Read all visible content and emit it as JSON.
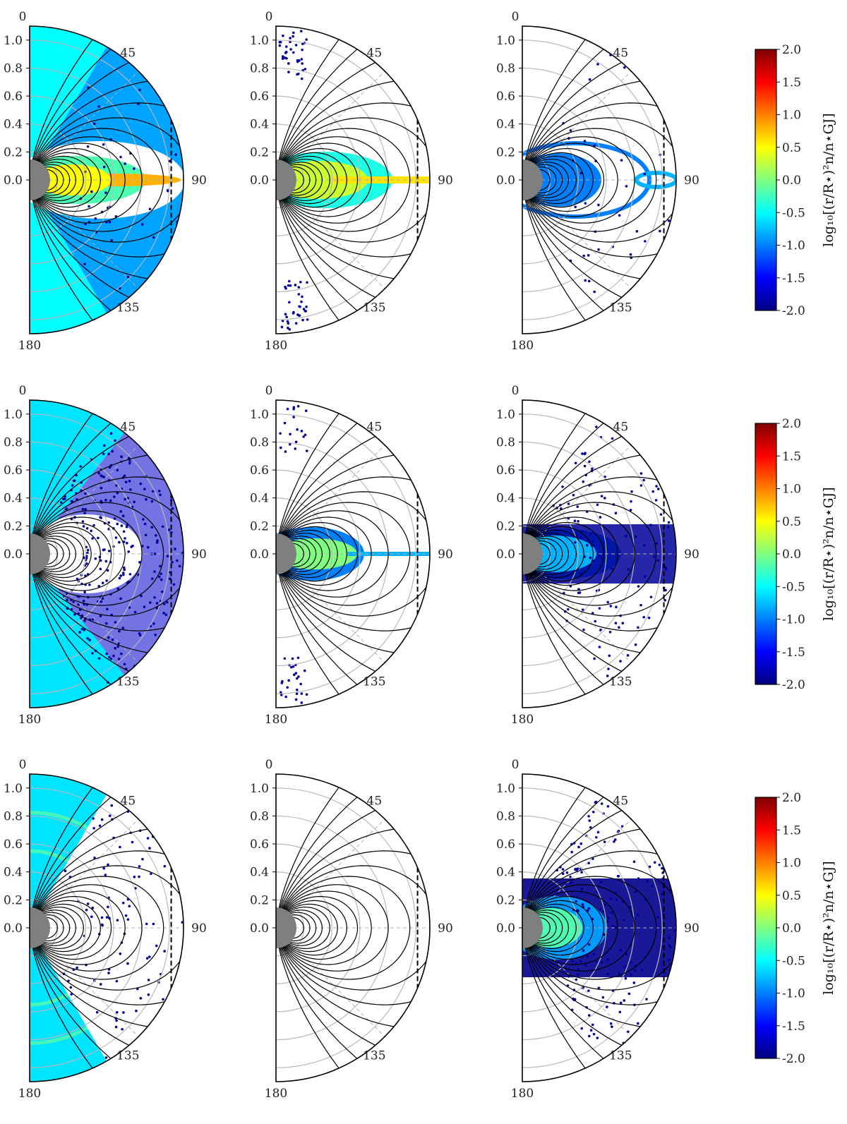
{
  "figure": {
    "panel_rows": 3,
    "panel_cols": 3,
    "angle_ticks": [
      "0",
      "45",
      "90",
      "135",
      "180"
    ],
    "radial_ticks": [
      "1.0",
      "0.8",
      "0.6",
      "0.4",
      "0.2",
      "0.0"
    ]
  },
  "colorbar": {
    "label": "log₁₀[(r/R⋆)²n/n⋆GJ]",
    "ticks": [
      "2.0",
      "1.5",
      "1.0",
      "0.5",
      "0.0",
      "-0.5",
      "-1.0",
      "-1.5",
      "-2.0"
    ],
    "range": [
      -2.0,
      2.0
    ],
    "colormap": "jet"
  },
  "chart_data": {
    "type": "heatmap",
    "projection": "polar half-plane",
    "theta_range_deg": [
      0,
      180
    ],
    "r_range": [
      0,
      1.1
    ],
    "colorbar_range": [
      -2.0,
      2.0
    ],
    "panels": [
      {
        "row": 0,
        "col": 0,
        "pattern": "filled",
        "level": -0.6
      },
      {
        "row": 0,
        "col": 1,
        "pattern": "sheet",
        "level": 0.2
      },
      {
        "row": 0,
        "col": 2,
        "pattern": "ring",
        "level": -1.2
      },
      {
        "row": 1,
        "col": 0,
        "pattern": "wedge-scatter",
        "level": -0.7
      },
      {
        "row": 1,
        "col": 1,
        "pattern": "sheet-small",
        "level": -0.2
      },
      {
        "row": 1,
        "col": 2,
        "pattern": "band",
        "level": -1.8
      },
      {
        "row": 2,
        "col": 0,
        "pattern": "wedge-arcs",
        "level": -0.8
      },
      {
        "row": 2,
        "col": 1,
        "pattern": "empty",
        "level": null
      },
      {
        "row": 2,
        "col": 2,
        "pattern": "band-core",
        "level": -1.6
      }
    ]
  }
}
